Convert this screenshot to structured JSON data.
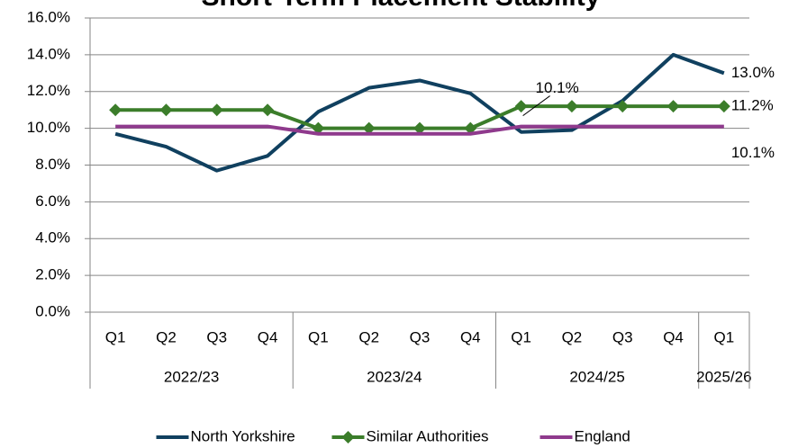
{
  "chart_data": {
    "type": "line",
    "title": "Short-Term Placement Stability",
    "categories": [
      "Q1",
      "Q2",
      "Q3",
      "Q4",
      "Q1",
      "Q2",
      "Q3",
      "Q4",
      "Q1",
      "Q2",
      "Q3",
      "Q4",
      "Q1"
    ],
    "category_groups": [
      {
        "name": "2022/23",
        "span": 4
      },
      {
        "name": "2023/24",
        "span": 4
      },
      {
        "name": "2024/25",
        "span": 4
      },
      {
        "name": "2025/26",
        "span": 1
      }
    ],
    "series": [
      {
        "name": "North Yorkshire",
        "color": "#10405f",
        "marker": "none",
        "values": [
          9.7,
          9.0,
          7.7,
          8.5,
          10.9,
          12.2,
          12.6,
          11.9,
          9.8,
          9.9,
          11.5,
          14.0,
          13.0
        ],
        "value_labels": [
          null,
          null,
          null,
          null,
          null,
          null,
          null,
          null,
          null,
          null,
          null,
          null,
          "13.0%"
        ]
      },
      {
        "name": "Similar Authorities",
        "color": "#3b7d2a",
        "marker": "diamond",
        "values": [
          11.0,
          11.0,
          11.0,
          11.0,
          10.0,
          10.0,
          10.0,
          10.0,
          11.2,
          11.2,
          11.2,
          11.2,
          11.2
        ],
        "value_labels": [
          null,
          null,
          null,
          null,
          null,
          null,
          null,
          null,
          null,
          null,
          null,
          null,
          "11.2%"
        ]
      },
      {
        "name": "England",
        "color": "#8f3a8d",
        "marker": "none",
        "values": [
          10.1,
          10.1,
          10.1,
          10.1,
          9.7,
          9.7,
          9.7,
          9.7,
          10.1,
          10.1,
          10.1,
          10.1,
          10.1
        ],
        "value_labels": [
          null,
          null,
          null,
          null,
          null,
          null,
          null,
          null,
          "10.1%",
          null,
          null,
          null,
          "10.1%"
        ]
      }
    ],
    "ylim": [
      0,
      16
    ],
    "yticks": [
      {
        "value": 0,
        "label": "0.0%"
      },
      {
        "value": 2,
        "label": "2.0%"
      },
      {
        "value": 4,
        "label": "4.0%"
      },
      {
        "value": 6,
        "label": "6.0%"
      },
      {
        "value": 8,
        "label": "8.0%"
      },
      {
        "value": 10,
        "label": "10.0%"
      },
      {
        "value": 12,
        "label": "12.0%"
      },
      {
        "value": 14,
        "label": "14.0%"
      },
      {
        "value": 16,
        "label": "16.0%"
      }
    ],
    "grid": true,
    "legend": "bottom"
  }
}
